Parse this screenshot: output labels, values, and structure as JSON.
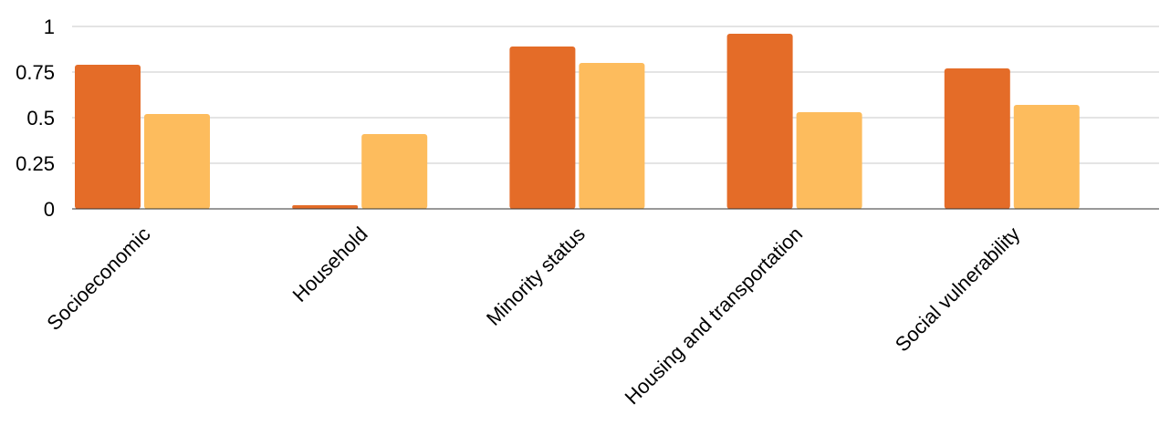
{
  "chart_data": {
    "type": "bar",
    "categories": [
      "Socioeconomic",
      "Household",
      "Minority status",
      "Housing and transportation",
      "Social vulnerability"
    ],
    "series": [
      {
        "color": "#e46c28",
        "values": [
          0.79,
          0.02,
          0.89,
          0.96,
          0.77
        ]
      },
      {
        "color": "#fdbc5d",
        "values": [
          0.52,
          0.41,
          0.8,
          0.53,
          0.57
        ]
      }
    ],
    "title": "",
    "xlabel": "",
    "ylabel": "",
    "ylim": [
      0,
      1
    ],
    "yticks": [
      {
        "value": 0,
        "label": "0"
      },
      {
        "value": 0.25,
        "label": "0.25"
      },
      {
        "value": 0.5,
        "label": "0.5"
      },
      {
        "value": 0.75,
        "label": "0.75"
      },
      {
        "value": 1,
        "label": "1"
      }
    ],
    "grid": true,
    "legend": "none",
    "colors": {
      "gridline": "#c8c8c8",
      "axis": "#333333"
    }
  }
}
